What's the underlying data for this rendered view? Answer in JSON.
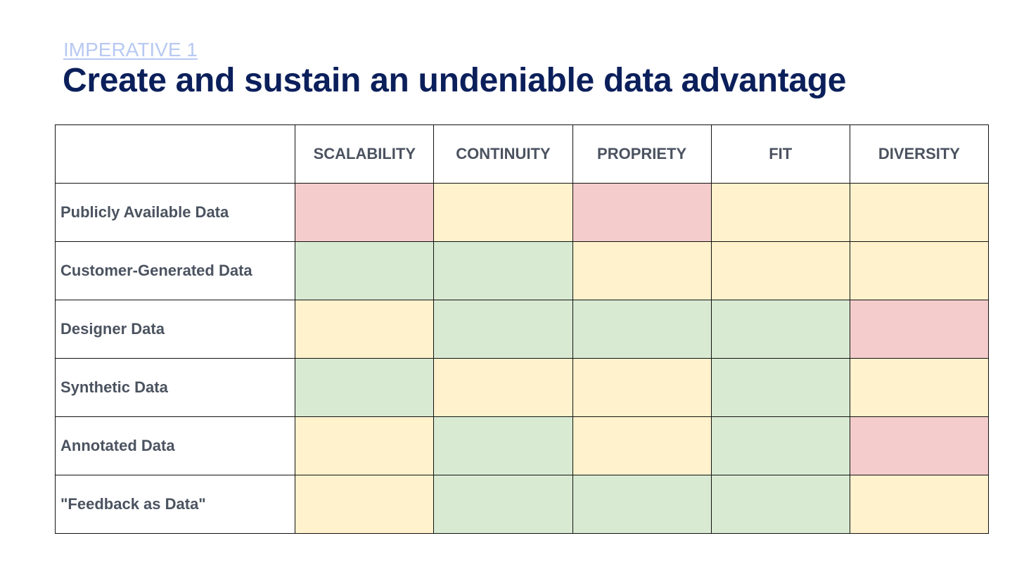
{
  "slide": {
    "eyebrow": "IMPERATIVE 1",
    "title": "Create and sustain an undeniable data advantage"
  },
  "matrix": {
    "corner": "",
    "columns": [
      "SCALABILITY",
      "CONTINUITY",
      "PROPRIETY",
      "FIT",
      "DIVERSITY"
    ],
    "rows": [
      {
        "label": "Publicly Available Data",
        "ratings": [
          "red",
          "yellow",
          "red",
          "yellow",
          "yellow"
        ]
      },
      {
        "label": "Customer-Generated Data",
        "ratings": [
          "green",
          "green",
          "yellow",
          "yellow",
          "yellow"
        ]
      },
      {
        "label": "Designer Data",
        "ratings": [
          "yellow",
          "green",
          "green",
          "green",
          "red"
        ]
      },
      {
        "label": "Synthetic Data",
        "ratings": [
          "green",
          "yellow",
          "yellow",
          "green",
          "yellow"
        ]
      },
      {
        "label": "Annotated Data",
        "ratings": [
          "yellow",
          "green",
          "yellow",
          "green",
          "red"
        ]
      },
      {
        "label": "\"Feedback as Data\"",
        "ratings": [
          "yellow",
          "green",
          "green",
          "green",
          "yellow"
        ]
      }
    ],
    "rating_colors": {
      "red": "#f4cccc",
      "yellow": "#fff2cc",
      "green": "#d9ead3"
    }
  },
  "colors": {
    "title": "#0b1f5b",
    "eyebrow": "#b7c9f2",
    "label_text": "#4b5360",
    "border": "#111111"
  }
}
